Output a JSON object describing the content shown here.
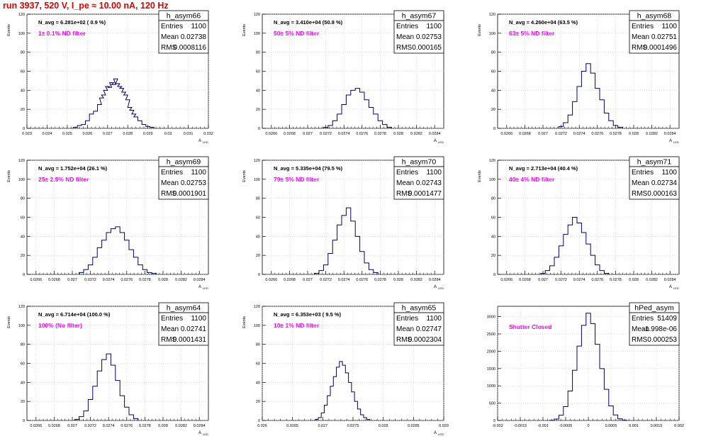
{
  "header": {
    "run_title": "run 3937,   520 V, I_pe ≈ 10.00 nA, 120 Hz"
  },
  "colors": {
    "histogram": "#00006e",
    "annotation": "#ff00ff",
    "title": "#e00000",
    "grid": "#c8c8c8"
  },
  "chart_data": [
    {
      "type": "histogram",
      "title": "h_asym66",
      "xlabel": "A",
      "xlabel_sub": "LED",
      "ylabel": "Events",
      "navg": "N_avg = 6.281e+02 ( 0.9 %)",
      "filter": "1± 0.1% ND filter",
      "stats": [
        {
          "label": "Entries",
          "value": "1100"
        },
        {
          "label": "Mean",
          "value": "0.02738"
        },
        {
          "label": "RMS",
          "value": "0.0008116"
        }
      ],
      "xlim": [
        0.023,
        0.032
      ],
      "xticks": [
        0.023,
        0.024,
        0.025,
        0.026,
        0.027,
        0.028,
        0.029,
        0.03,
        0.031,
        0.032
      ],
      "xtick_labels": [
        "0.023",
        "0.024",
        "0.025",
        "0.026",
        "0.027",
        "0.028",
        "0.029",
        "0.03",
        "0.031",
        "0.032"
      ],
      "ylim": [
        0,
        120
      ],
      "yticks": [
        0,
        20,
        40,
        60,
        80,
        100,
        120
      ],
      "bins": [
        [
          0.0254,
          1
        ],
        [
          0.0256,
          3
        ],
        [
          0.0258,
          4
        ],
        [
          0.026,
          8
        ],
        [
          0.0262,
          15
        ],
        [
          0.0264,
          18
        ],
        [
          0.0266,
          25
        ],
        [
          0.0267,
          32
        ],
        [
          0.0268,
          35
        ],
        [
          0.0269,
          40
        ],
        [
          0.027,
          44
        ],
        [
          0.0271,
          43
        ],
        [
          0.0272,
          48
        ],
        [
          0.0273,
          46
        ],
        [
          0.0274,
          52
        ],
        [
          0.0275,
          47
        ],
        [
          0.0276,
          44
        ],
        [
          0.0277,
          42
        ],
        [
          0.0278,
          38
        ],
        [
          0.0279,
          35
        ],
        [
          0.028,
          30
        ],
        [
          0.0281,
          22
        ],
        [
          0.0282,
          19
        ],
        [
          0.0283,
          15
        ],
        [
          0.0284,
          12
        ],
        [
          0.0286,
          8
        ],
        [
          0.0288,
          4
        ],
        [
          0.029,
          2
        ],
        [
          0.0292,
          1
        ]
      ]
    },
    {
      "type": "histogram",
      "title": "h_asym67",
      "xlabel": "A",
      "xlabel_sub": "LED",
      "ylabel": "Events",
      "navg": "N_avg = 3.410e+04 (50.8 %)",
      "filter": "50± 5% ND filter",
      "stats": [
        {
          "label": "Entries",
          "value": "1100"
        },
        {
          "label": "Mean",
          "value": "0.02753"
        },
        {
          "label": "RMS",
          "value": "0.000165"
        }
      ],
      "xlim": [
        0.0265,
        0.0285
      ],
      "xticks": [
        0.0266,
        0.0268,
        0.027,
        0.0272,
        0.0274,
        0.0276,
        0.0278,
        0.028,
        0.0282,
        0.0284
      ],
      "xtick_labels": [
        "0.0266",
        "0.0268",
        "0.027",
        "0.0272",
        "0.0274",
        "0.0276",
        "0.0278",
        "0.028",
        "0.0282",
        "0.0284"
      ],
      "ylim": [
        0,
        120
      ],
      "yticks": [
        0,
        20,
        40,
        60,
        80,
        100,
        120
      ],
      "bins": [
        [
          0.0272,
          1
        ],
        [
          0.02725,
          3
        ],
        [
          0.0273,
          8
        ],
        [
          0.02735,
          15
        ],
        [
          0.0274,
          25
        ],
        [
          0.02745,
          35
        ],
        [
          0.0275,
          40
        ],
        [
          0.02755,
          42
        ],
        [
          0.0276,
          38
        ],
        [
          0.02765,
          30
        ],
        [
          0.0277,
          22
        ],
        [
          0.02775,
          15
        ],
        [
          0.0278,
          8
        ],
        [
          0.02785,
          4
        ],
        [
          0.0279,
          1
        ]
      ]
    },
    {
      "type": "histogram",
      "title": "h_asym68",
      "xlabel": "A",
      "xlabel_sub": "LED",
      "ylabel": "Events",
      "navg": "N_avg = 4.260e+04 (63.5 %)",
      "filter": "63± 5% ND filter",
      "stats": [
        {
          "label": "Entries",
          "value": "1100"
        },
        {
          "label": "Mean",
          "value": "0.02751"
        },
        {
          "label": "RMS",
          "value": "0.0001496"
        }
      ],
      "xlim": [
        0.0265,
        0.0285
      ],
      "xticks": [
        0.0266,
        0.0268,
        0.027,
        0.0272,
        0.0274,
        0.0276,
        0.0278,
        0.028,
        0.0282,
        0.0284
      ],
      "xtick_labels": [
        "0.0266",
        "0.0268",
        "0.027",
        "0.0272",
        "0.0274",
        "0.0276",
        "0.0278",
        "0.028",
        "0.0282",
        "0.0284"
      ],
      "ylim": [
        0,
        120
      ],
      "yticks": [
        0,
        20,
        40,
        60,
        80,
        100,
        120
      ],
      "bins": [
        [
          0.0272,
          2
        ],
        [
          0.02725,
          6
        ],
        [
          0.0273,
          14
        ],
        [
          0.02735,
          28
        ],
        [
          0.0274,
          44
        ],
        [
          0.02745,
          60
        ],
        [
          0.0275,
          68
        ],
        [
          0.02755,
          58
        ],
        [
          0.0276,
          42
        ],
        [
          0.02765,
          30
        ],
        [
          0.0277,
          16
        ],
        [
          0.02775,
          8
        ],
        [
          0.0278,
          3
        ],
        [
          0.02785,
          1
        ]
      ]
    },
    {
      "type": "histogram",
      "title": "h_asym69",
      "xlabel": "A",
      "xlabel_sub": "LED",
      "ylabel": "Events",
      "navg": "N_avg = 1.752e+04 (26.1 %)",
      "filter": "25± 2.5% ND filter",
      "stats": [
        {
          "label": "Entries",
          "value": "1100"
        },
        {
          "label": "Mean",
          "value": "0.02753"
        },
        {
          "label": "RMS",
          "value": "0.0001901"
        }
      ],
      "xlim": [
        0.0265,
        0.0285
      ],
      "xticks": [
        0.0266,
        0.0268,
        0.027,
        0.0272,
        0.0274,
        0.0276,
        0.0278,
        0.028,
        0.0282,
        0.0284
      ],
      "xtick_labels": [
        "0.0266",
        "0.0268",
        "0.027",
        "0.0272",
        "0.0274",
        "0.0276",
        "0.0278",
        "0.028",
        "0.0282",
        "0.0284"
      ],
      "ylim": [
        0,
        120
      ],
      "yticks": [
        0,
        20,
        40,
        60,
        80,
        100,
        120
      ],
      "bins": [
        [
          0.0271,
          2
        ],
        [
          0.02715,
          5
        ],
        [
          0.0272,
          10
        ],
        [
          0.02725,
          18
        ],
        [
          0.0273,
          28
        ],
        [
          0.02735,
          36
        ],
        [
          0.0274,
          44
        ],
        [
          0.02745,
          48
        ],
        [
          0.0275,
          50
        ],
        [
          0.02755,
          44
        ],
        [
          0.0276,
          36
        ],
        [
          0.02765,
          26
        ],
        [
          0.0277,
          18
        ],
        [
          0.02775,
          10
        ],
        [
          0.0278,
          5
        ],
        [
          0.02785,
          2
        ],
        [
          0.0279,
          1
        ]
      ]
    },
    {
      "type": "histogram",
      "title": "h_asym70",
      "xlabel": "A",
      "xlabel_sub": "LED",
      "ylabel": "Events",
      "navg": "N_avg = 5.335e+04 (79.5 %)",
      "filter": "79± 5% ND filter",
      "stats": [
        {
          "label": "Entries",
          "value": "1100"
        },
        {
          "label": "Mean",
          "value": "0.02743"
        },
        {
          "label": "RMS",
          "value": "0.0001477"
        }
      ],
      "xlim": [
        0.0265,
        0.0285
      ],
      "xticks": [
        0.0266,
        0.0268,
        0.027,
        0.0272,
        0.0274,
        0.0276,
        0.0278,
        0.028,
        0.0282,
        0.0284
      ],
      "xtick_labels": [
        "0.0266",
        "0.0268",
        "0.027",
        "0.0272",
        "0.0274",
        "0.0276",
        "0.0278",
        "0.028",
        "0.0282",
        "0.0284"
      ],
      "ylim": [
        0,
        120
      ],
      "yticks": [
        0,
        20,
        40,
        60,
        80,
        100,
        120
      ],
      "bins": [
        [
          0.0271,
          1
        ],
        [
          0.02715,
          4
        ],
        [
          0.0272,
          10
        ],
        [
          0.02725,
          22
        ],
        [
          0.0273,
          36
        ],
        [
          0.02735,
          52
        ],
        [
          0.0274,
          62
        ],
        [
          0.02745,
          70
        ],
        [
          0.0275,
          56
        ],
        [
          0.02755,
          40
        ],
        [
          0.0276,
          24
        ],
        [
          0.02765,
          12
        ],
        [
          0.0277,
          5
        ],
        [
          0.02775,
          2
        ]
      ]
    },
    {
      "type": "histogram",
      "title": "h_asym71",
      "xlabel": "A",
      "xlabel_sub": "LED",
      "ylabel": "Events",
      "navg": "N_avg = 2.713e+04 (40.4 %)",
      "filter": "40± 4% ND filter",
      "stats": [
        {
          "label": "Entries",
          "value": "1100"
        },
        {
          "label": "Mean",
          "value": "0.02734"
        },
        {
          "label": "RMS",
          "value": "0.000163"
        }
      ],
      "xlim": [
        0.0265,
        0.0285
      ],
      "xticks": [
        0.0266,
        0.0268,
        0.027,
        0.0272,
        0.0274,
        0.0276,
        0.0278,
        0.028,
        0.0282,
        0.0284
      ],
      "xtick_labels": [
        "0.0266",
        "0.0268",
        "0.027",
        "0.0272",
        "0.0274",
        "0.0276",
        "0.0278",
        "0.028",
        "0.0282",
        "0.0284"
      ],
      "ylim": [
        0,
        120
      ],
      "yticks": [
        0,
        20,
        40,
        60,
        80,
        100,
        120
      ],
      "bins": [
        [
          0.027,
          1
        ],
        [
          0.02705,
          4
        ],
        [
          0.0271,
          9
        ],
        [
          0.02715,
          18
        ],
        [
          0.0272,
          30
        ],
        [
          0.02725,
          42
        ],
        [
          0.0273,
          52
        ],
        [
          0.02735,
          60
        ],
        [
          0.0274,
          54
        ],
        [
          0.02745,
          44
        ],
        [
          0.0275,
          32
        ],
        [
          0.02755,
          20
        ],
        [
          0.0276,
          10
        ],
        [
          0.02765,
          4
        ],
        [
          0.0277,
          1
        ]
      ]
    },
    {
      "type": "histogram",
      "title": "h_asym64",
      "xlabel": "A",
      "xlabel_sub": "LED",
      "ylabel": "Events",
      "navg": "N_avg = 6.714e+04 (100.0 %)",
      "filter": "100% (No filter)",
      "stats": [
        {
          "label": "Entries",
          "value": "1100"
        },
        {
          "label": "Mean",
          "value": "0.02741"
        },
        {
          "label": "RMS",
          "value": "0.0001431"
        }
      ],
      "xlim": [
        0.0265,
        0.0285
      ],
      "xticks": [
        0.0266,
        0.0268,
        0.027,
        0.0272,
        0.0274,
        0.0276,
        0.0278,
        0.028,
        0.0282,
        0.0284
      ],
      "xtick_labels": [
        "0.0266",
        "0.0268",
        "0.027",
        "0.0272",
        "0.0274",
        "0.0276",
        "0.0278",
        "0.028",
        "0.0282",
        "0.0284"
      ],
      "ylim": [
        0,
        120
      ],
      "yticks": [
        0,
        20,
        40,
        60,
        80,
        100,
        120
      ],
      "bins": [
        [
          0.02705,
          1
        ],
        [
          0.0271,
          4
        ],
        [
          0.02715,
          10
        ],
        [
          0.0272,
          22
        ],
        [
          0.02725,
          36
        ],
        [
          0.0273,
          52
        ],
        [
          0.02735,
          64
        ],
        [
          0.0274,
          70
        ],
        [
          0.02745,
          58
        ],
        [
          0.0275,
          42
        ],
        [
          0.02755,
          26
        ],
        [
          0.0276,
          14
        ],
        [
          0.02765,
          6
        ],
        [
          0.0277,
          2
        ]
      ]
    },
    {
      "type": "histogram",
      "title": "h_asym65",
      "xlabel": "A",
      "xlabel_sub": "LED",
      "ylabel": "Events",
      "navg": "N_avg = 6.353e+03 ( 9.5 %)",
      "filter": "10± 1% ND filter",
      "stats": [
        {
          "label": "Entries",
          "value": "1100"
        },
        {
          "label": "Mean",
          "value": "0.02747"
        },
        {
          "label": "RMS",
          "value": "0.0002304"
        }
      ],
      "xlim": [
        0.026,
        0.029
      ],
      "xticks": [
        0.026,
        0.0265,
        0.027,
        0.0275,
        0.028,
        0.0285,
        0.029
      ],
      "xtick_labels": [
        "0.026",
        "0.0265",
        "0.027",
        "0.0275",
        "0.028",
        "0.0285",
        "0.029"
      ],
      "ylim": [
        0,
        120
      ],
      "yticks": [
        0,
        20,
        40,
        60,
        80,
        100,
        120
      ],
      "bins": [
        [
          0.0269,
          1
        ],
        [
          0.02695,
          3
        ],
        [
          0.027,
          8
        ],
        [
          0.02705,
          16
        ],
        [
          0.0271,
          26
        ],
        [
          0.02715,
          36
        ],
        [
          0.0272,
          46
        ],
        [
          0.02725,
          56
        ],
        [
          0.0273,
          62
        ],
        [
          0.02735,
          58
        ],
        [
          0.0274,
          50
        ],
        [
          0.02745,
          40
        ],
        [
          0.0275,
          30
        ],
        [
          0.02755,
          20
        ],
        [
          0.0276,
          12
        ],
        [
          0.02765,
          6
        ],
        [
          0.0277,
          3
        ],
        [
          0.02775,
          1
        ]
      ]
    },
    {
      "type": "histogram",
      "title": "hPed_asym",
      "xlabel": "",
      "xlabel_sub": "",
      "ylabel": "",
      "navg": "",
      "filter": "Shutter Closed",
      "stats": [
        {
          "label": "Entries",
          "value": "51409"
        },
        {
          "label": "Mean",
          "value": "-1.998e-06"
        },
        {
          "label": "RMS",
          "value": "0.000253"
        }
      ],
      "xlim": [
        -0.002,
        0.002
      ],
      "xticks": [
        -0.002,
        -0.0015,
        -0.001,
        -0.0005,
        0,
        0.0005,
        0.001,
        0.0015,
        0.002
      ],
      "xtick_labels": [
        "-0.002",
        "-0.0015",
        "-0.001",
        "-0.0005",
        "0",
        "0.0005",
        "0.001",
        "0.0015",
        "0.002"
      ],
      "ylim": [
        0,
        3300
      ],
      "yticks": [
        0,
        500,
        1000,
        1500,
        2000,
        2500,
        3000
      ],
      "bins": [
        [
          -0.0008,
          5
        ],
        [
          -0.0007,
          40
        ],
        [
          -0.0006,
          150
        ],
        [
          -0.0005,
          400
        ],
        [
          -0.0004,
          850
        ],
        [
          -0.0003,
          1450
        ],
        [
          -0.0002,
          2150
        ],
        [
          -0.0001,
          2750
        ],
        [
          0,
          3100
        ],
        [
          0.0001,
          2800
        ],
        [
          0.0002,
          2200
        ],
        [
          0.0003,
          1500
        ],
        [
          0.0004,
          900
        ],
        [
          0.0005,
          420
        ],
        [
          0.0006,
          160
        ],
        [
          0.0007,
          45
        ],
        [
          0.0008,
          8
        ]
      ]
    }
  ]
}
